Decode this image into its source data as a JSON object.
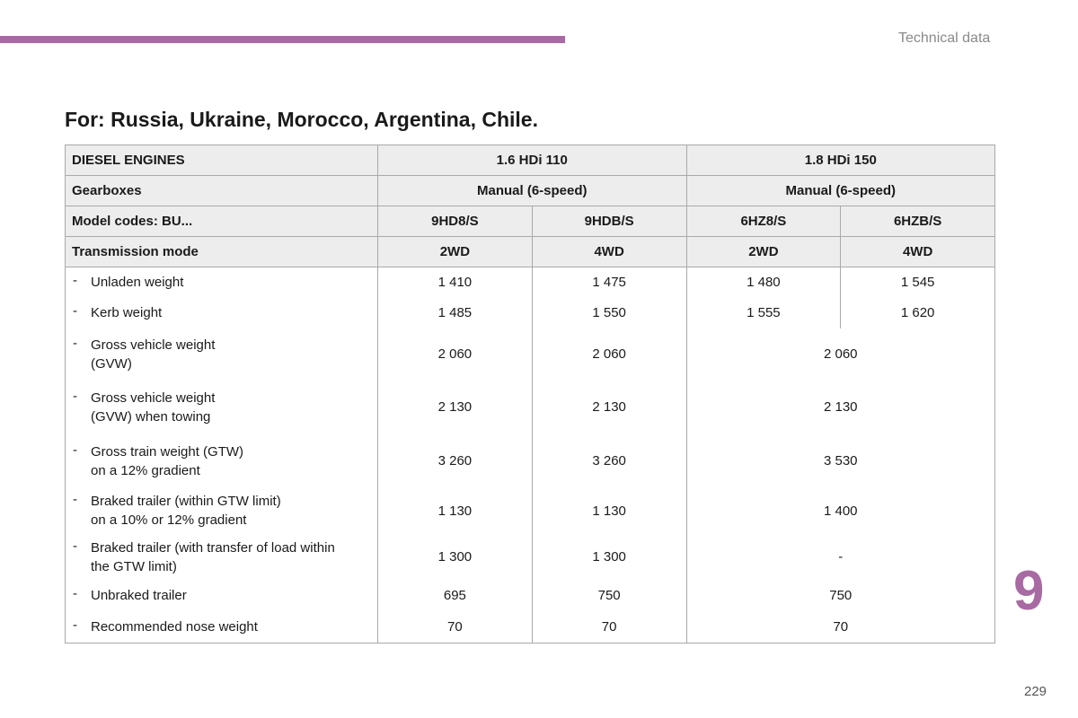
{
  "header": {
    "section_label": "Technical data"
  },
  "title": "For: Russia, Ukraine, Morocco, Argentina, Chile.",
  "chapter_number": "9",
  "page_number": "229",
  "table": {
    "head": {
      "engines_label": "DIESEL ENGINES",
      "engine_a": "1.6 HDi 110",
      "engine_b": "1.8 HDi 150",
      "gearboxes_label": "Gearboxes",
      "gearbox_a": "Manual (6-speed)",
      "gearbox_b": "Manual (6-speed)",
      "model_label": "Model codes: BU...",
      "models": [
        "9HD8/S",
        "9HDB/S",
        "6HZ8/S",
        "6HZB/S"
      ],
      "transmission_label": "Transmission mode",
      "transmissions": [
        "2WD",
        "4WD",
        "2WD",
        "4WD"
      ]
    },
    "dash": "-",
    "rows": [
      {
        "line1": "Unladen weight",
        "line2": "",
        "values": [
          "1 410",
          "1 475",
          "1 480",
          "1 545"
        ]
      },
      {
        "line1": "Kerb weight",
        "line2": "",
        "values": [
          "1 485",
          "1 550",
          "1 555",
          "1 620"
        ]
      },
      {
        "line1": "Gross vehicle weight",
        "line2": "(GVW)",
        "values": [
          "2 060",
          "2 060",
          "2 060"
        ]
      },
      {
        "line1": "Gross vehicle weight",
        "line2": "(GVW) when towing",
        "values": [
          "2 130",
          "2 130",
          "2 130"
        ]
      },
      {
        "line1": "Gross train weight (GTW)",
        "line2": "on a 12% gradient",
        "values": [
          "3 260",
          "3 260",
          "3 530"
        ]
      },
      {
        "line1": "Braked trailer (within GTW limit)",
        "line2": "on a 10% or 12% gradient",
        "values": [
          "1 130",
          "1 130",
          "1 400"
        ]
      },
      {
        "line1": "Braked trailer (with transfer of load within",
        "line2": "the GTW limit)",
        "values": [
          "1 300",
          "1 300",
          "-"
        ]
      },
      {
        "line1": "Unbraked trailer",
        "line2": "",
        "values": [
          "695",
          "750",
          "750"
        ]
      },
      {
        "line1": "Recommended nose weight",
        "line2": "",
        "values": [
          "70",
          "70",
          "70"
        ]
      }
    ]
  },
  "colors": {
    "accent": "#a86aa3",
    "header_bg": "#ededed",
    "border": "#a9a9a9"
  }
}
